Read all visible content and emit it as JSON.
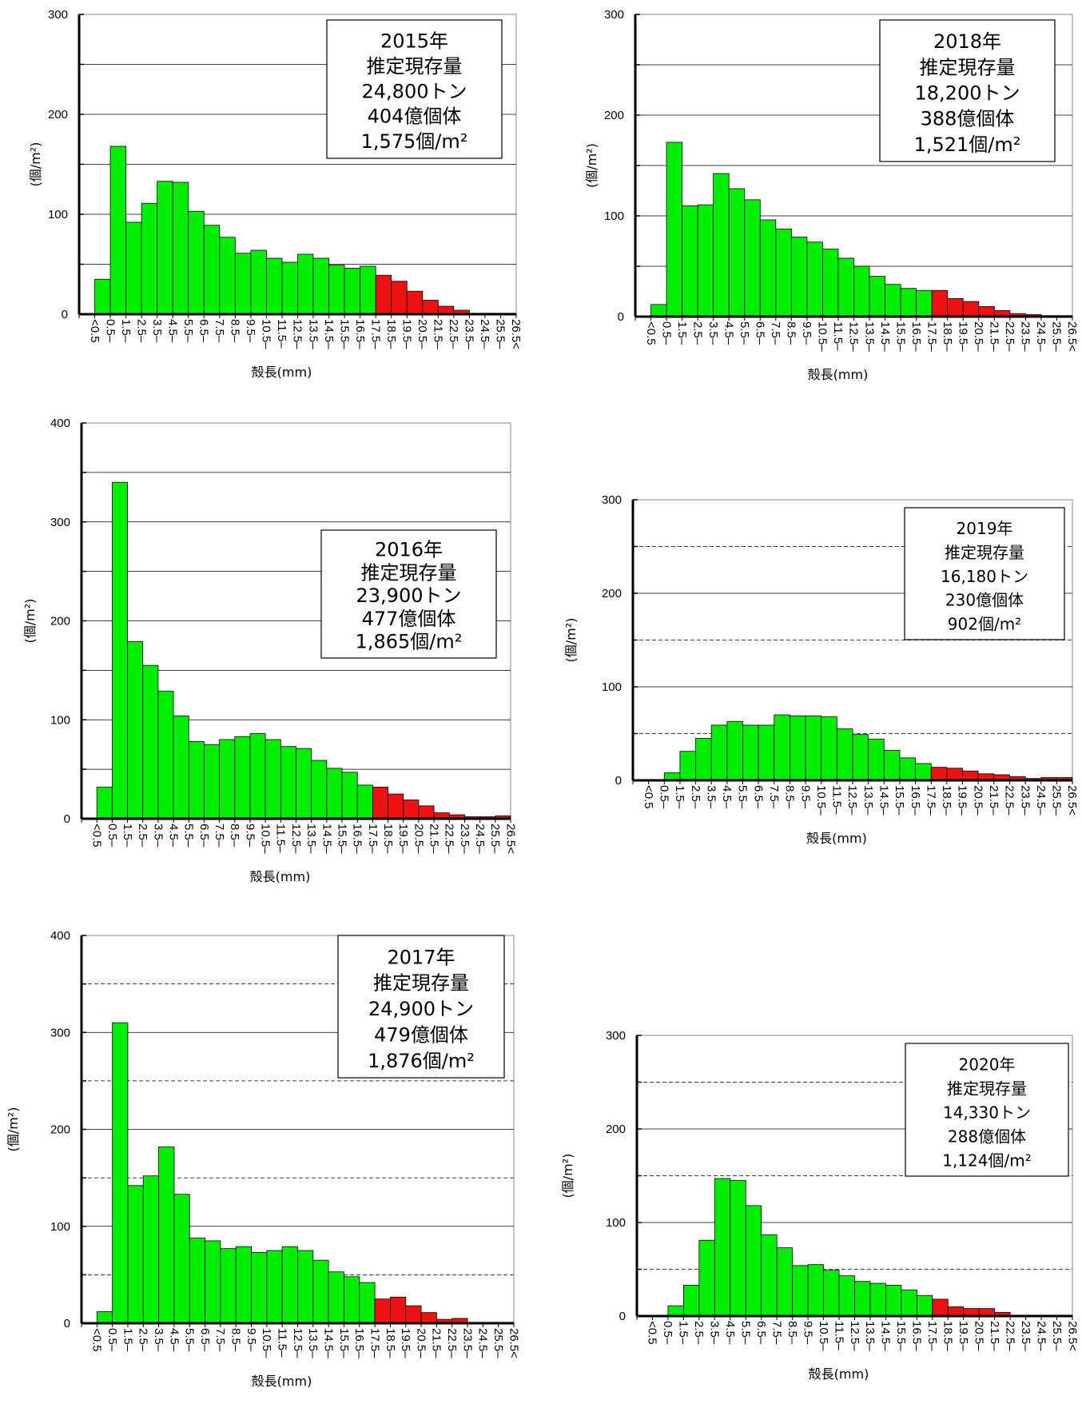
{
  "colors": {
    "green": "#00ee00",
    "red": "#ee1111",
    "bar_stroke": "#000000",
    "grid": "#000000"
  },
  "categories": [
    "<0.5",
    "0.5–",
    "1.5–",
    "2.5–",
    "3.5–",
    "4.5–",
    "5.5–",
    "6.5–",
    "7.5–",
    "8.5–",
    "9.5–",
    "10.5–",
    "11.5–",
    "12.5–",
    "13.5–",
    "14.5–",
    "15.5–",
    "16.5–",
    "17.5–",
    "18.5–",
    "19.5–",
    "20.5–",
    "21.5–",
    "22.5–",
    "23.5–",
    "24.5–",
    "25.5–",
    "26.5<"
  ],
  "chart_data": [
    {
      "type": "bar",
      "xlabel": "殻長(mm)",
      "ylabel": "(個/m²)",
      "ylim": [
        0,
        300
      ],
      "yticks": [
        0,
        100,
        200,
        300
      ],
      "grid": "solid at 50-unit intervals",
      "values": [
        0,
        35,
        168,
        92,
        111,
        133,
        132,
        103,
        89,
        77,
        61,
        64,
        56,
        52,
        60,
        56,
        49,
        46,
        48,
        39,
        33,
        23,
        14,
        8,
        4,
        1,
        1,
        1
      ],
      "red_from_index": 19,
      "box": [
        "2015年",
        "推定現存量",
        "24,800トン",
        "404億個体",
        "1,575個/m²"
      ]
    },
    {
      "type": "bar",
      "xlabel": "殻長(mm)",
      "ylabel": "(個/m²)",
      "ylim": [
        0,
        300
      ],
      "yticks": [
        0,
        100,
        200,
        300
      ],
      "grid": "solid at 50-unit intervals",
      "values": [
        0,
        12,
        173,
        110,
        111,
        142,
        127,
        116,
        96,
        87,
        79,
        74,
        67,
        58,
        50,
        40,
        32,
        28,
        26,
        26,
        18,
        15,
        10,
        6,
        3,
        2,
        1,
        1
      ],
      "red_from_index": 19,
      "box": [
        "2018年",
        "推定現存量",
        "18,200トン",
        "388億個体",
        "1,521個/m²"
      ]
    },
    {
      "type": "bar",
      "xlabel": "殻長(mm)",
      "ylabel": "(個/m²)",
      "ylim": [
        0,
        400
      ],
      "yticks": [
        0,
        100,
        200,
        300,
        400
      ],
      "grid": "solid at 50-unit intervals",
      "values": [
        0,
        32,
        340,
        179,
        155,
        129,
        104,
        78,
        75,
        80,
        83,
        86,
        80,
        73,
        71,
        59,
        51,
        47,
        34,
        32,
        25,
        19,
        13,
        6,
        4,
        2,
        2,
        3
      ],
      "red_from_index": 19,
      "box": [
        "2016年",
        "推定現存量",
        "23,900トン",
        "477億個体",
        "1,865個/m²"
      ]
    },
    {
      "type": "bar",
      "xlabel": "殻長(mm)",
      "ylabel": "(個/m²)",
      "ylim": [
        0,
        300
      ],
      "yticks": [
        0,
        100,
        200,
        300
      ],
      "grid": "solid at 100-unit intervals, dashed at 50-unit intervals",
      "values": [
        0,
        1,
        8,
        31,
        45,
        59,
        63,
        59,
        59,
        70,
        69,
        69,
        68,
        55,
        49,
        44,
        32,
        24,
        18,
        14,
        13,
        10,
        7,
        6,
        4,
        2,
        3,
        3
      ],
      "red_from_index": 19,
      "box": [
        "2019年",
        "推定現存量",
        "16,180トン",
        "230億個体",
        "902個/m²"
      ]
    },
    {
      "type": "bar",
      "xlabel": "殻長(mm)",
      "ylabel": "(個/m²)",
      "ylim": [
        0,
        400
      ],
      "yticks": [
        0,
        100,
        200,
        300,
        400
      ],
      "grid": "solid at 100-unit intervals, dashed at 50-unit intervals",
      "values": [
        0,
        12,
        310,
        142,
        152,
        182,
        133,
        88,
        85,
        77,
        79,
        73,
        75,
        79,
        75,
        65,
        53,
        48,
        42,
        25,
        27,
        18,
        11,
        4,
        5,
        1,
        1,
        1
      ],
      "red_from_index": 19,
      "box": [
        "2017年",
        "推定現存量",
        "24,900トン",
        "479億個体",
        "1,876個/m²"
      ]
    },
    {
      "type": "bar",
      "xlabel": "殻長(mm)",
      "ylabel": "(個/m²)",
      "ylim": [
        0,
        300
      ],
      "yticks": [
        0,
        100,
        200,
        300
      ],
      "grid": "solid at 100-unit intervals, dashed at 50-unit intervals",
      "values": [
        0,
        0,
        11,
        33,
        81,
        147,
        145,
        118,
        87,
        73,
        54,
        55,
        49,
        43,
        37,
        35,
        33,
        28,
        22,
        18,
        10,
        8,
        8,
        4,
        1,
        1,
        1,
        1
      ],
      "red_from_index": 19,
      "box": [
        "2020年",
        "推定現存量",
        "14,330トン",
        "288億個体",
        "1,124個/m²"
      ]
    }
  ]
}
